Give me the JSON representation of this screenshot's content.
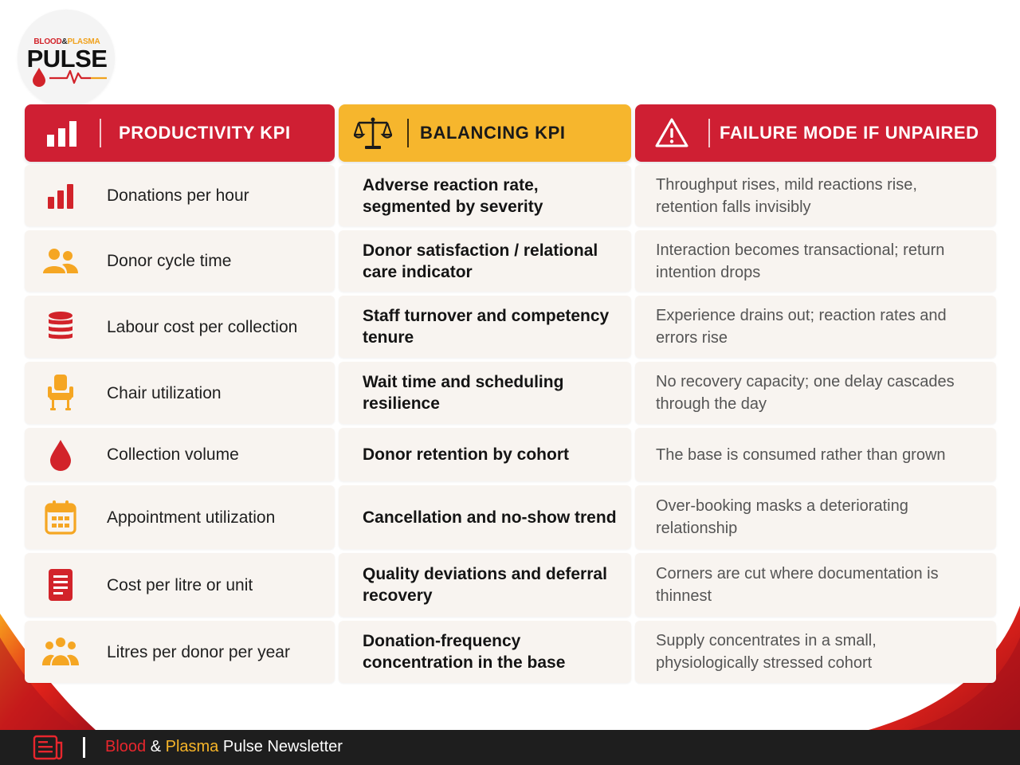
{
  "logo": {
    "top_blood": "BLOOD",
    "top_amp": "&",
    "top_plasma": "PLASMA",
    "main": "PULSE"
  },
  "headers": [
    {
      "label": "PRODUCTIVITY KPI",
      "icon": "bar-chart-icon",
      "color": "#cf1f33"
    },
    {
      "label": "BALANCING KPI",
      "icon": "scales-icon",
      "color": "#f6b62d"
    },
    {
      "label": "FAILURE MODE IF UNPAIRED",
      "icon": "warning-icon",
      "color": "#cf1f33"
    }
  ],
  "rows": [
    {
      "icon": "bar-chart-icon",
      "productivity": "Donations per hour",
      "balancing": "Adverse reaction rate, segmented by severity",
      "failure": "Throughput rises, mild reactions rise, retention falls invisibly"
    },
    {
      "icon": "people-icon",
      "productivity": "Donor cycle time",
      "balancing": "Donor satisfaction / relational care indicator",
      "failure": "Interaction becomes transactional; return intention drops"
    },
    {
      "icon": "coin-stack-icon",
      "productivity": "Labour cost per collection",
      "balancing": "Staff turnover and competency tenure",
      "failure": "Experience drains out; reaction rates and errors rise"
    },
    {
      "icon": "chair-icon",
      "productivity": "Chair utilization",
      "balancing": "Wait time and scheduling resilience",
      "failure": "No recovery capacity; one delay cascades through the day"
    },
    {
      "icon": "blood-drop-icon",
      "productivity": "Collection volume",
      "balancing": "Donor retention by cohort",
      "failure": "The base is consumed rather than grown"
    },
    {
      "icon": "calendar-icon",
      "productivity": "Appointment utilization",
      "balancing": "Cancellation and no-show trend",
      "failure": "Over-booking masks a deteriorating relationship"
    },
    {
      "icon": "document-icon",
      "productivity": "Cost per litre or unit",
      "balancing": "Quality deviations and deferral recovery",
      "failure": "Corners are cut where documentation is thinnest"
    },
    {
      "icon": "group-icon",
      "productivity": "Litres per donor per year",
      "balancing": "Donation-frequency concentration in the base",
      "failure": "Supply concentrates in a small, physiologically stressed cohort"
    }
  ],
  "footer": {
    "blood": "Blood",
    "amp": " & ",
    "plasma": "Plasma",
    "rest": " Pulse Newsletter"
  },
  "colors": {
    "red": "#cf1f33",
    "yellow": "#f6b62d",
    "orange": "#f5a623",
    "cell_bg": "#f8f4f0",
    "footer_bg": "#1e1e1e"
  }
}
